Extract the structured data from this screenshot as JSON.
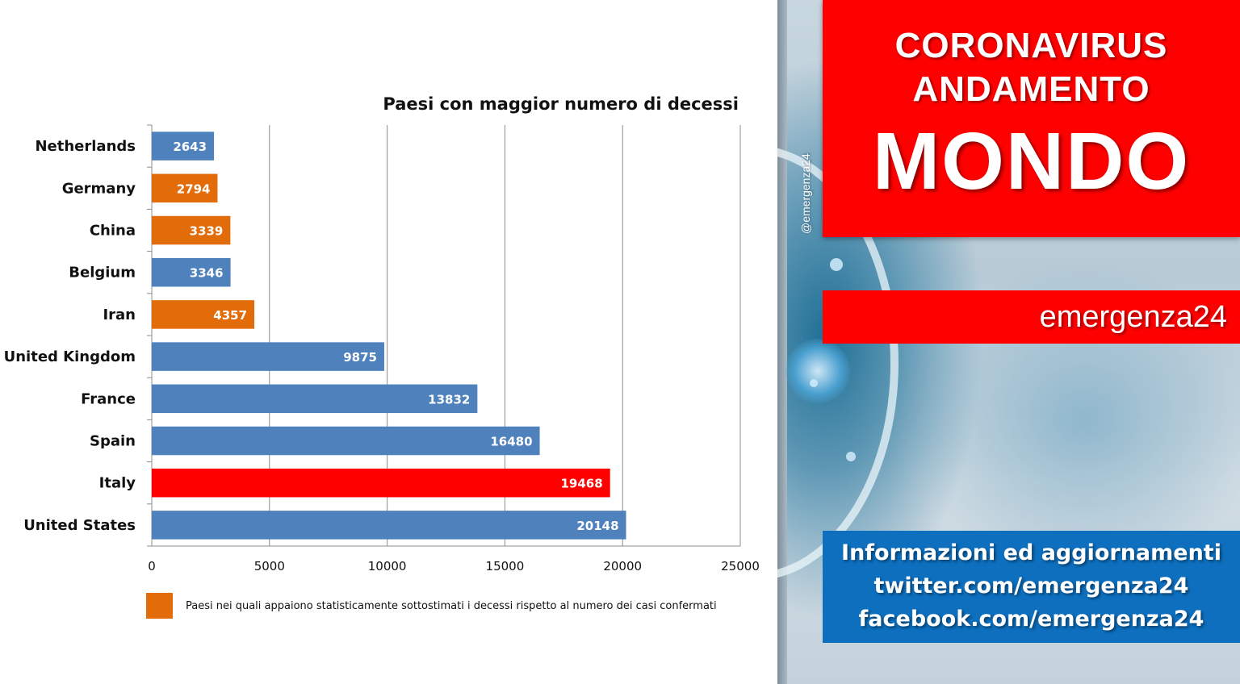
{
  "chart_data": {
    "type": "bar",
    "orientation": "horizontal",
    "title": "Paesi con maggior numero di decessi",
    "categories": [
      "Netherlands",
      "Germany",
      "China",
      "Belgium",
      "Iran",
      "United Kingdom",
      "France",
      "Spain",
      "Italy",
      "United States"
    ],
    "values": [
      2643,
      2794,
      3339,
      3346,
      4357,
      9875,
      13832,
      16480,
      19468,
      20148
    ],
    "bar_colors": [
      "#4f81bd",
      "#e36c0a",
      "#e36c0a",
      "#4f81bd",
      "#e36c0a",
      "#4f81bd",
      "#4f81bd",
      "#4f81bd",
      "#ff0000",
      "#4f81bd"
    ],
    "xlim": [
      0,
      25000
    ],
    "xticks": [
      0,
      5000,
      10000,
      15000,
      20000,
      25000
    ],
    "grid": true,
    "legend": [
      {
        "color": "#e36c0a",
        "label": "Paesi nei quali appaiono statisticamente sottostimati i decessi rispetto al numero dei casi confermati"
      }
    ],
    "legend_position": "bottom-left"
  },
  "banner": {
    "line1": "CORONAVIRUS",
    "line2": "ANDAMENTO",
    "main": "MONDO",
    "brand": "emergenza24",
    "handle": "@emergenza24",
    "info": [
      "Informazioni ed aggiornamenti",
      "twitter.com/emergenza24",
      "facebook.com/emergenza24"
    ]
  },
  "colors": {
    "accent_red": "#ff0000",
    "info_blue": "#0d6fbe"
  }
}
